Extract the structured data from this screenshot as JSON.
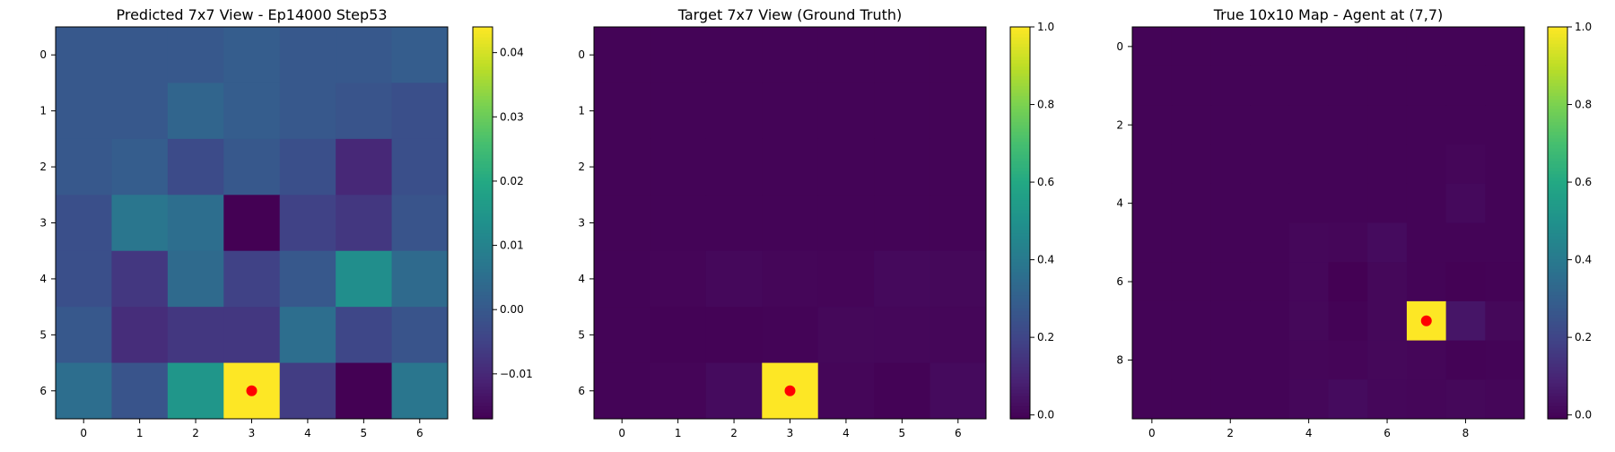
{
  "chart_data": [
    {
      "type": "heatmap",
      "title": "Predicted 7x7 View - Ep14000 Step53",
      "rows": 7,
      "cols": 7,
      "x_ticks": [
        "0",
        "1",
        "2",
        "3",
        "4",
        "5",
        "6"
      ],
      "y_ticks": [
        "0",
        "1",
        "2",
        "3",
        "4",
        "5",
        "6"
      ],
      "values": [
        [
          0.0,
          0.0,
          0.0,
          0.001,
          0.0,
          0.0,
          0.001
        ],
        [
          0.0,
          0.0,
          0.003,
          0.001,
          0.0,
          -0.001,
          -0.002
        ],
        [
          0.0,
          0.001,
          -0.003,
          0.0,
          -0.002,
          -0.01,
          -0.002
        ],
        [
          -0.002,
          0.007,
          0.005,
          -0.017,
          -0.005,
          -0.007,
          -0.001
        ],
        [
          -0.002,
          -0.007,
          0.004,
          -0.005,
          0.0,
          0.013,
          0.004
        ],
        [
          0.0,
          -0.009,
          -0.007,
          -0.007,
          0.005,
          -0.004,
          -0.001
        ],
        [
          0.005,
          -0.001,
          0.015,
          0.044,
          -0.006,
          -0.017,
          0.007
        ]
      ],
      "vmin": -0.017,
      "vmax": 0.044,
      "colorbar_ticks": [
        "−0.01",
        "0.00",
        "0.01",
        "0.02",
        "0.03",
        "0.04"
      ],
      "colorbar_tick_values": [
        -0.01,
        0.0,
        0.01,
        0.02,
        0.03,
        0.04
      ],
      "marker": {
        "x": 3,
        "y": 6,
        "color": "#ff0000"
      }
    },
    {
      "type": "heatmap",
      "title": "Target 7x7 View (Ground Truth)",
      "rows": 7,
      "cols": 7,
      "x_ticks": [
        "0",
        "1",
        "2",
        "3",
        "4",
        "5",
        "6"
      ],
      "y_ticks": [
        "0",
        "1",
        "2",
        "3",
        "4",
        "5",
        "6"
      ],
      "values": [
        [
          0,
          0,
          0,
          0,
          0,
          0,
          0
        ],
        [
          0,
          0,
          0,
          0,
          0,
          0,
          0
        ],
        [
          0,
          0,
          0,
          0,
          0,
          0,
          0
        ],
        [
          0,
          0,
          0,
          0,
          0,
          0,
          0
        ],
        [
          0,
          0.003,
          0.012,
          0.006,
          0.003,
          0.015,
          0.01
        ],
        [
          0,
          -0.004,
          -0.005,
          0,
          0.01,
          0.008,
          0.005
        ],
        [
          0,
          0.003,
          0.02,
          1.0,
          0.006,
          -0.005,
          0.018
        ]
      ],
      "vmin": -0.01,
      "vmax": 1.0,
      "colorbar_ticks": [
        "0.0",
        "0.2",
        "0.4",
        "0.6",
        "0.8",
        "1.0"
      ],
      "colorbar_tick_values": [
        0.0,
        0.2,
        0.4,
        0.6,
        0.8,
        1.0
      ],
      "marker": {
        "x": 3,
        "y": 6,
        "color": "#ff0000"
      }
    },
    {
      "type": "heatmap",
      "title": "True 10x10 Map - Agent at (7,7)",
      "rows": 10,
      "cols": 10,
      "x_ticks": [
        "0",
        "2",
        "4",
        "6",
        "8"
      ],
      "x_tick_positions": [
        0,
        2,
        4,
        6,
        8
      ],
      "y_ticks": [
        "0",
        "2",
        "4",
        "6",
        "8"
      ],
      "y_tick_positions": [
        0,
        2,
        4,
        6,
        8
      ],
      "values": [
        [
          0,
          0,
          0,
          0,
          0,
          0,
          0,
          0,
          0,
          0
        ],
        [
          0,
          0,
          0,
          0,
          0,
          0,
          0,
          0,
          0,
          0
        ],
        [
          0,
          0,
          0,
          0,
          0,
          0,
          0,
          0,
          0,
          0
        ],
        [
          0,
          0,
          0,
          0,
          0,
          0,
          0,
          0,
          0.005,
          0
        ],
        [
          0,
          0,
          0,
          0,
          0,
          0,
          0,
          0,
          0.015,
          0
        ],
        [
          0,
          0,
          0,
          0,
          0.008,
          0.005,
          0.02,
          0,
          0,
          0
        ],
        [
          0,
          0,
          0,
          0,
          0.008,
          -0.01,
          0.01,
          0,
          -0.008,
          -0.005
        ],
        [
          0,
          0,
          0,
          0,
          0.01,
          -0.005,
          0.01,
          1.0,
          0.05,
          0.01
        ],
        [
          0,
          0,
          0,
          0,
          0.005,
          0.003,
          0.01,
          0.005,
          -0.005,
          0
        ],
        [
          0,
          0,
          0,
          0,
          0.008,
          0.02,
          0.008,
          0.005,
          0.01,
          0.005
        ]
      ],
      "vmin": -0.01,
      "vmax": 1.0,
      "colorbar_ticks": [
        "0.0",
        "0.2",
        "0.4",
        "0.6",
        "0.8",
        "1.0"
      ],
      "colorbar_tick_values": [
        0.0,
        0.2,
        0.4,
        0.6,
        0.8,
        1.0
      ],
      "marker": {
        "x": 7,
        "y": 7,
        "color": "#ff0000"
      }
    }
  ],
  "colormap": "viridis"
}
